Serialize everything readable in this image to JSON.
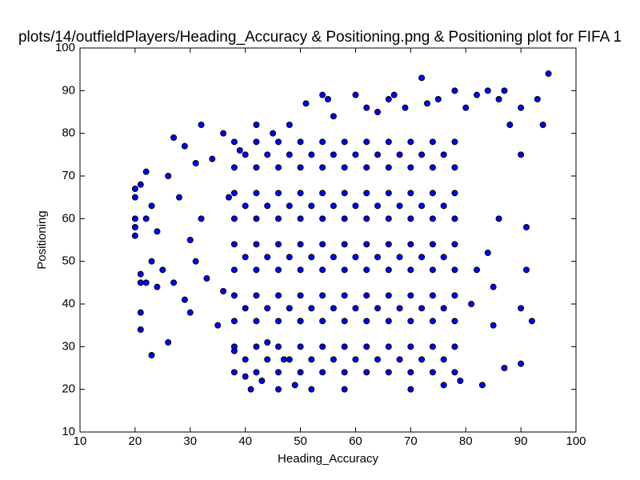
{
  "chart_data": {
    "type": "scatter",
    "title": "plots/14/outfieldPlayers/Heading_Accuracy & Positioning.png & Positioning plot for FIFA 1",
    "xlabel": "Heading_Accuracy",
    "ylabel": "Positioning",
    "color": "#0000ff",
    "edgecolor": "#000000",
    "xlim": [
      10,
      100
    ],
    "ylim": [
      10,
      100
    ],
    "xticks": [
      10,
      20,
      30,
      40,
      50,
      60,
      70,
      80,
      90,
      100
    ],
    "yticks": [
      10,
      20,
      30,
      40,
      50,
      60,
      70,
      80,
      90,
      100
    ],
    "grid": false,
    "x": [
      20,
      20,
      20,
      20,
      20,
      21,
      21,
      21,
      21,
      21,
      22,
      22,
      22,
      23,
      23,
      23,
      24,
      24,
      25,
      26,
      26,
      27,
      27,
      28,
      29,
      29,
      30,
      30,
      31,
      31,
      32,
      32,
      33,
      34,
      35,
      36,
      36,
      37,
      38,
      39,
      40,
      41,
      42,
      43,
      44,
      45,
      46,
      47,
      48,
      49,
      50,
      51,
      52,
      54,
      55,
      56,
      58,
      60,
      62,
      64,
      66,
      67,
      69,
      70,
      72,
      73,
      75,
      76,
      78,
      79,
      80,
      81,
      82,
      83,
      84,
      85,
      86,
      87,
      87,
      88,
      90,
      90,
      90,
      90,
      91,
      91,
      92,
      93,
      94,
      95,
      86,
      84,
      82,
      85,
      38,
      42,
      46,
      50,
      54,
      58,
      62,
      66,
      70,
      74,
      78,
      38,
      42,
      46,
      50,
      54,
      58,
      62,
      66,
      70,
      74,
      78,
      38,
      42,
      46,
      50,
      54,
      58,
      62,
      66,
      70,
      74,
      78,
      38,
      42,
      46,
      50,
      54,
      58,
      62,
      66,
      70,
      74,
      78,
      38,
      42,
      46,
      50,
      54,
      58,
      62,
      66,
      70,
      74,
      78,
      38,
      42,
      46,
      50,
      54,
      58,
      62,
      66,
      70,
      74,
      78,
      38,
      42,
      46,
      50,
      54,
      58,
      62,
      66,
      70,
      74,
      78,
      38,
      42,
      46,
      50,
      54,
      58,
      62,
      66,
      70,
      74,
      78,
      38,
      42,
      46,
      50,
      54,
      58,
      62,
      66,
      70,
      74,
      78,
      38,
      42,
      46,
      50,
      54,
      58,
      62,
      66,
      70,
      74,
      78,
      40,
      44,
      48,
      52,
      56,
      60,
      64,
      68,
      72,
      76,
      40,
      44,
      48,
      52,
      56,
      60,
      64,
      68,
      72,
      76,
      40,
      44,
      48,
      52,
      56,
      60,
      64,
      68,
      72,
      76,
      40,
      44,
      48,
      52,
      56,
      60,
      64,
      68,
      72,
      76,
      40,
      44,
      48,
      52,
      56,
      60,
      64,
      68,
      72,
      76
    ],
    "values": [
      67,
      65,
      60,
      58,
      56,
      68,
      47,
      45,
      38,
      34,
      71,
      60,
      45,
      28,
      50,
      63,
      44,
      57,
      48,
      31,
      70,
      79,
      45,
      65,
      77,
      41,
      55,
      38,
      73,
      50,
      82,
      60,
      46,
      74,
      35,
      80,
      43,
      65,
      29,
      76,
      23,
      20,
      82,
      22,
      31,
      80,
      20,
      27,
      82,
      21,
      36,
      87,
      20,
      89,
      88,
      84,
      20,
      89,
      86,
      85,
      88,
      89,
      86,
      20,
      93,
      87,
      88,
      21,
      90,
      22,
      86,
      40,
      89,
      21,
      90,
      35,
      88,
      90,
      25,
      82,
      86,
      75,
      39,
      26,
      58,
      48,
      36,
      88,
      82,
      94,
      60,
      52,
      48,
      44,
      24,
      24,
      24,
      24,
      24,
      24,
      24,
      24,
      24,
      24,
      24,
      30,
      30,
      30,
      30,
      30,
      30,
      30,
      30,
      30,
      30,
      30,
      36,
      36,
      36,
      36,
      36,
      36,
      36,
      36,
      36,
      36,
      36,
      42,
      42,
      42,
      42,
      42,
      42,
      42,
      42,
      42,
      42,
      42,
      48,
      48,
      48,
      48,
      48,
      48,
      48,
      48,
      48,
      48,
      48,
      54,
      54,
      54,
      54,
      54,
      54,
      54,
      54,
      54,
      54,
      54,
      60,
      60,
      60,
      60,
      60,
      60,
      60,
      60,
      60,
      60,
      60,
      66,
      66,
      66,
      66,
      66,
      66,
      66,
      66,
      66,
      66,
      66,
      72,
      72,
      72,
      72,
      72,
      72,
      72,
      72,
      72,
      72,
      72,
      78,
      78,
      78,
      78,
      78,
      78,
      78,
      78,
      78,
      78,
      78,
      27,
      27,
      27,
      27,
      27,
      27,
      27,
      27,
      27,
      27,
      39,
      39,
      39,
      39,
      39,
      39,
      39,
      39,
      39,
      39,
      51,
      51,
      51,
      51,
      51,
      51,
      51,
      51,
      51,
      51,
      63,
      63,
      63,
      63,
      63,
      63,
      63,
      63,
      63,
      63,
      75,
      75,
      75,
      75,
      75,
      75,
      75,
      75,
      75,
      75
    ]
  }
}
